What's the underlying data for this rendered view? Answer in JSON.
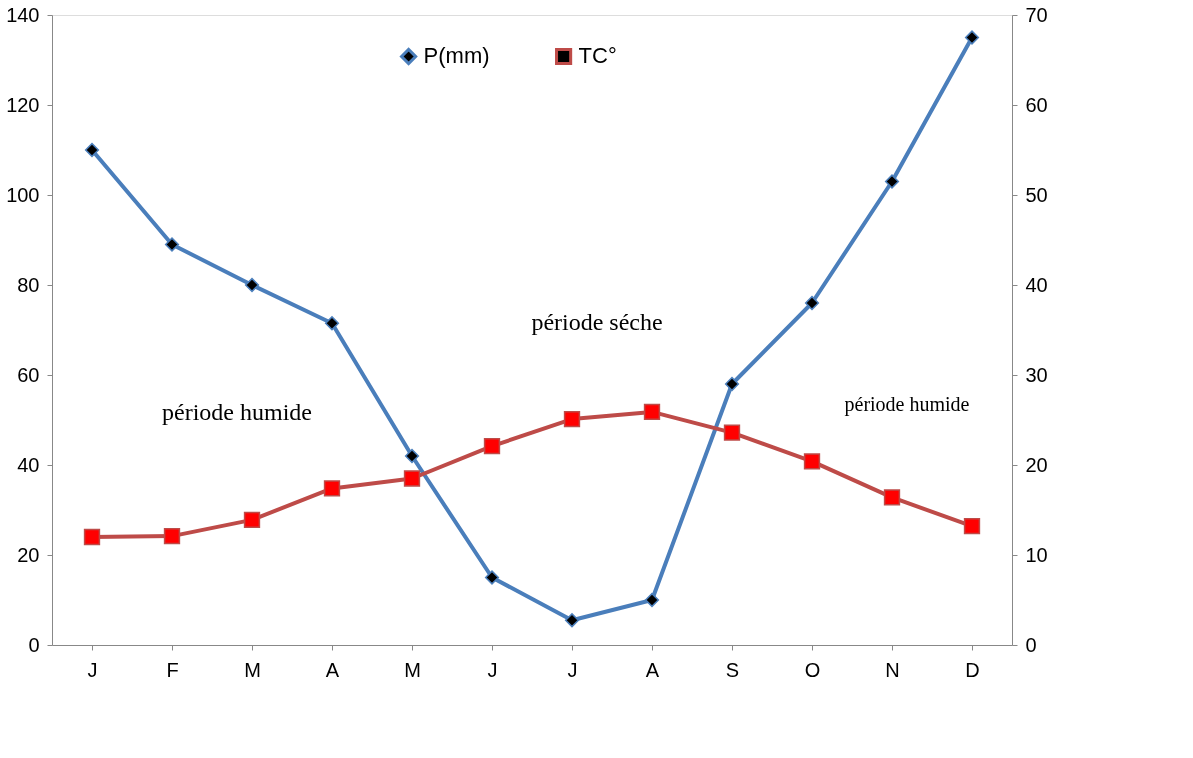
{
  "chart_data": {
    "type": "line",
    "categories": [
      "J",
      "F",
      "M",
      "A",
      "M",
      "J",
      "J",
      "A",
      "S",
      "O",
      "N",
      "D"
    ],
    "series": [
      {
        "name": "P(mm)",
        "color": "#4a7ebb",
        "marker": "diamond",
        "values": [
          110,
          89,
          80,
          71.5,
          42,
          15,
          5.5,
          10,
          58,
          76,
          103,
          135
        ]
      },
      {
        "name": "TC°",
        "color": "#be4b48",
        "marker": "square",
        "axis": "y2",
        "values": [
          12,
          12.1,
          13.9,
          17.4,
          18.5,
          22.1,
          25.1,
          25.9,
          23.6,
          20.4,
          16.4,
          13.2
        ]
      }
    ],
    "ylim": [
      0,
      140
    ],
    "yticks": [
      0,
      20,
      40,
      60,
      80,
      100,
      120,
      140
    ],
    "y2lim": [
      0,
      70
    ],
    "y2ticks": [
      0,
      10,
      20,
      30,
      40,
      50,
      60,
      70
    ],
    "annotations": [
      "période humide",
      "période séche",
      "période humide"
    ],
    "legend": "top",
    "grid": false,
    "line_style": "solid"
  }
}
